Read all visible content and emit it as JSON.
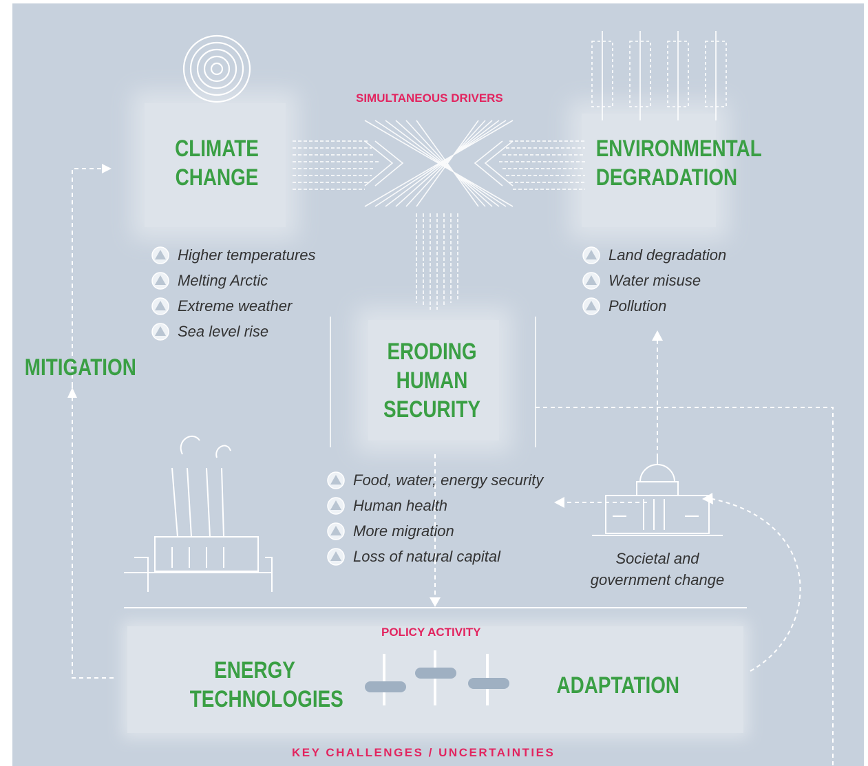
{
  "drivers_label": "SIMULTANEOUS DRIVERS",
  "nodes": [
    {
      "title": [
        "CLIMATE",
        "CHANGE"
      ],
      "items": [
        "Higher temperatures",
        "Melting Arctic",
        "Extreme weather",
        "Sea level rise"
      ]
    },
    {
      "title": [
        "ENVIRONMENTAL",
        "DEGRADATION"
      ],
      "items": [
        "Land degradation",
        "Water misuse",
        "Pollution"
      ]
    },
    {
      "title": [
        "ERODING",
        "HUMAN",
        "SECURITY"
      ],
      "items": [
        "Food, water, energy security",
        "Human health",
        "More migration",
        "Loss of natural capital"
      ]
    }
  ],
  "mitigation": "MITIGATION",
  "societal_change": [
    "Societal and",
    "government change"
  ],
  "policy": {
    "label": "POLICY ACTIVITY",
    "left": [
      "ENERGY",
      "TECHNOLOGIES"
    ],
    "right": "ADAPTATION"
  },
  "footer": "KEY CHALLENGES / UNCERTAINTIES"
}
